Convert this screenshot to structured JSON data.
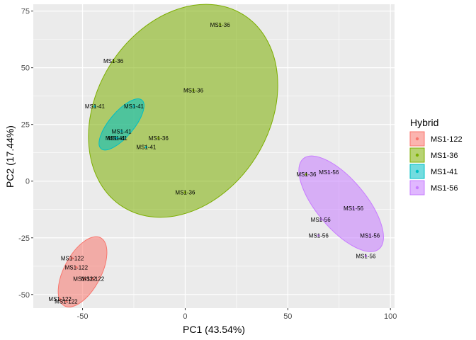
{
  "chart_data": {
    "type": "scatter",
    "xlabel": "PC1 (43.54%)",
    "ylabel": "PC2 (17.44%)",
    "xlim": [
      -74,
      102
    ],
    "ylim": [
      -56,
      78
    ],
    "xticks": [
      -50,
      0,
      50,
      100
    ],
    "yticks": [
      -50,
      -25,
      0,
      25,
      50,
      75
    ],
    "grid": true,
    "legend": {
      "title": "Hybrid",
      "placement": "right"
    },
    "series": [
      {
        "name": "MS1-122",
        "color": "#F8766D",
        "ellipse": {
          "cx": -50,
          "cy": -40,
          "rx": 9,
          "ry": 17,
          "angle_deg": 28
        },
        "points": [
          {
            "x": -55,
            "y": -34,
            "label": "MS1-122"
          },
          {
            "x": -53,
            "y": -38,
            "label": "MS1-122"
          },
          {
            "x": -45,
            "y": -43,
            "label": "MS1-122"
          },
          {
            "x": -49,
            "y": -43,
            "label": "MS1-122"
          },
          {
            "x": -61,
            "y": -52,
            "label": "MS1-122"
          },
          {
            "x": -58,
            "y": -53,
            "label": "MS1-122"
          }
        ]
      },
      {
        "name": "MS1-36",
        "color": "#7CAE00",
        "ellipse": {
          "cx": -1,
          "cy": 31,
          "rx": 42,
          "ry": 50,
          "angle_deg": 32
        },
        "points": [
          {
            "x": 17,
            "y": 69,
            "label": "MS1-36"
          },
          {
            "x": -35,
            "y": 53,
            "label": "MS1-36"
          },
          {
            "x": 4,
            "y": 40,
            "label": "MS1-36"
          },
          {
            "x": -13,
            "y": 19,
            "label": "MS1-36"
          },
          {
            "x": 0,
            "y": -5,
            "label": "MS1-36"
          },
          {
            "x": 59,
            "y": 3,
            "label": "MS1-36"
          }
        ]
      },
      {
        "name": "MS1-41",
        "color": "#00BFC4",
        "ellipse": {
          "cx": -31,
          "cy": 25,
          "rx": 6,
          "ry": 14,
          "angle_deg": 40
        },
        "points": [
          {
            "x": -44,
            "y": 33,
            "label": "MS1-41"
          },
          {
            "x": -25,
            "y": 33,
            "label": "MS1-41"
          },
          {
            "x": -31,
            "y": 22,
            "label": "MS1-41"
          },
          {
            "x": -34,
            "y": 19,
            "label": "MS1-41"
          },
          {
            "x": -33,
            "y": 19,
            "label": "MS1-41"
          },
          {
            "x": -19,
            "y": 15,
            "label": "MS1-41"
          }
        ]
      },
      {
        "name": "MS1-56",
        "color": "#C77CFF",
        "ellipse": {
          "cx": 76,
          "cy": -10,
          "rx": 12,
          "ry": 26,
          "angle_deg": -40
        },
        "points": [
          {
            "x": 70,
            "y": 4,
            "label": "MS1-56"
          },
          {
            "x": 82,
            "y": -12,
            "label": "MS1-56"
          },
          {
            "x": 66,
            "y": -17,
            "label": "MS1-56"
          },
          {
            "x": 65,
            "y": -24,
            "label": "MS1-56"
          },
          {
            "x": 90,
            "y": -24,
            "label": "MS1-56"
          },
          {
            "x": 88,
            "y": -33,
            "label": "MS1-56"
          }
        ]
      }
    ]
  }
}
